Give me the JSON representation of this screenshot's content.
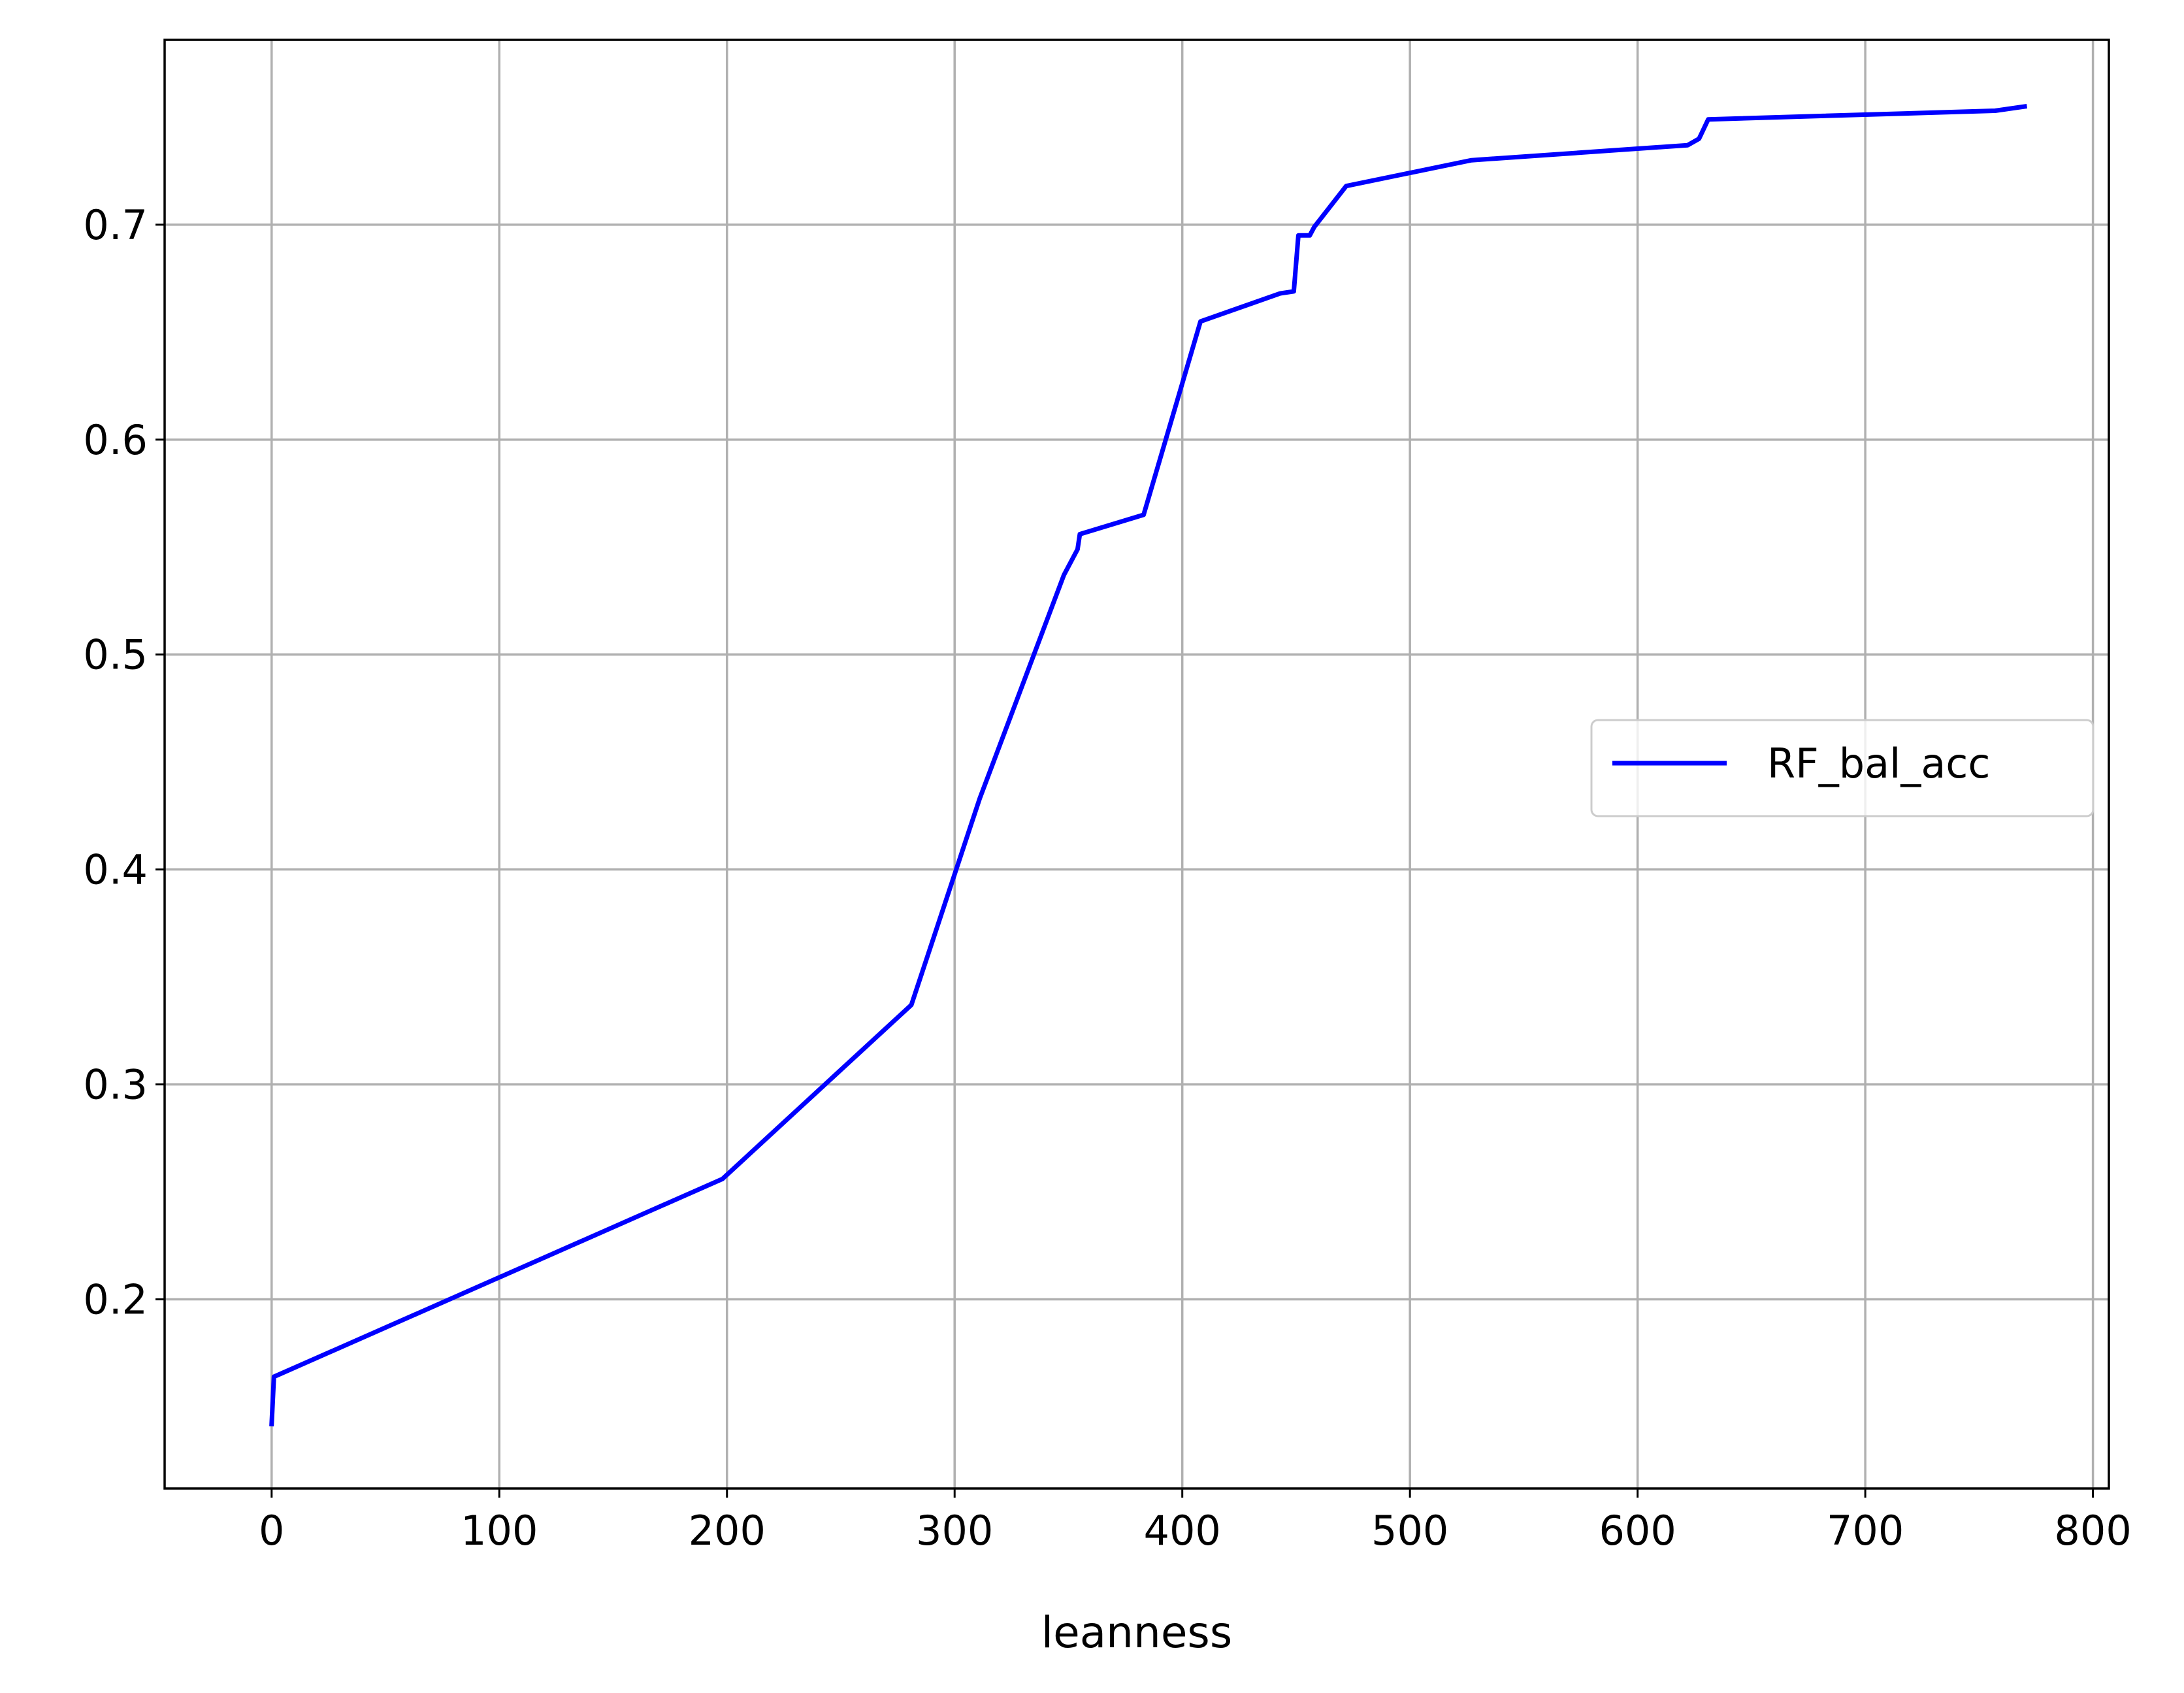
{
  "chart_data": {
    "type": "line",
    "title": "",
    "xlabel": "leanness",
    "ylabel": "",
    "xlim": [
      -47,
      807
    ],
    "ylim": [
      0.112,
      0.786
    ],
    "xticks": [
      0,
      100,
      200,
      300,
      400,
      500,
      600,
      700,
      800
    ],
    "xtick_labels": [
      "0",
      "100",
      "200",
      "300",
      "400",
      "500",
      "600",
      "700",
      "800"
    ],
    "yticks": [
      0.2,
      0.3,
      0.4,
      0.5,
      0.6,
      0.7
    ],
    "ytick_labels": [
      "0.2",
      "0.3",
      "0.4",
      "0.5",
      "0.6",
      "0.7"
    ],
    "grid": true,
    "legend_position": "center-right",
    "series": [
      {
        "name": "RF_bal_acc",
        "color": "#0000ff",
        "x": [
          0,
          1,
          198,
          281,
          311,
          348,
          354,
          355,
          383,
          408,
          443,
          449,
          451,
          456,
          458,
          472,
          527,
          622,
          627,
          631,
          757,
          770
        ],
        "y": [
          0.142,
          0.164,
          0.256,
          0.337,
          0.433,
          0.537,
          0.549,
          0.556,
          0.565,
          0.655,
          0.668,
          0.669,
          0.695,
          0.695,
          0.699,
          0.718,
          0.73,
          0.737,
          0.74,
          0.749,
          0.753,
          0.755
        ]
      }
    ]
  }
}
